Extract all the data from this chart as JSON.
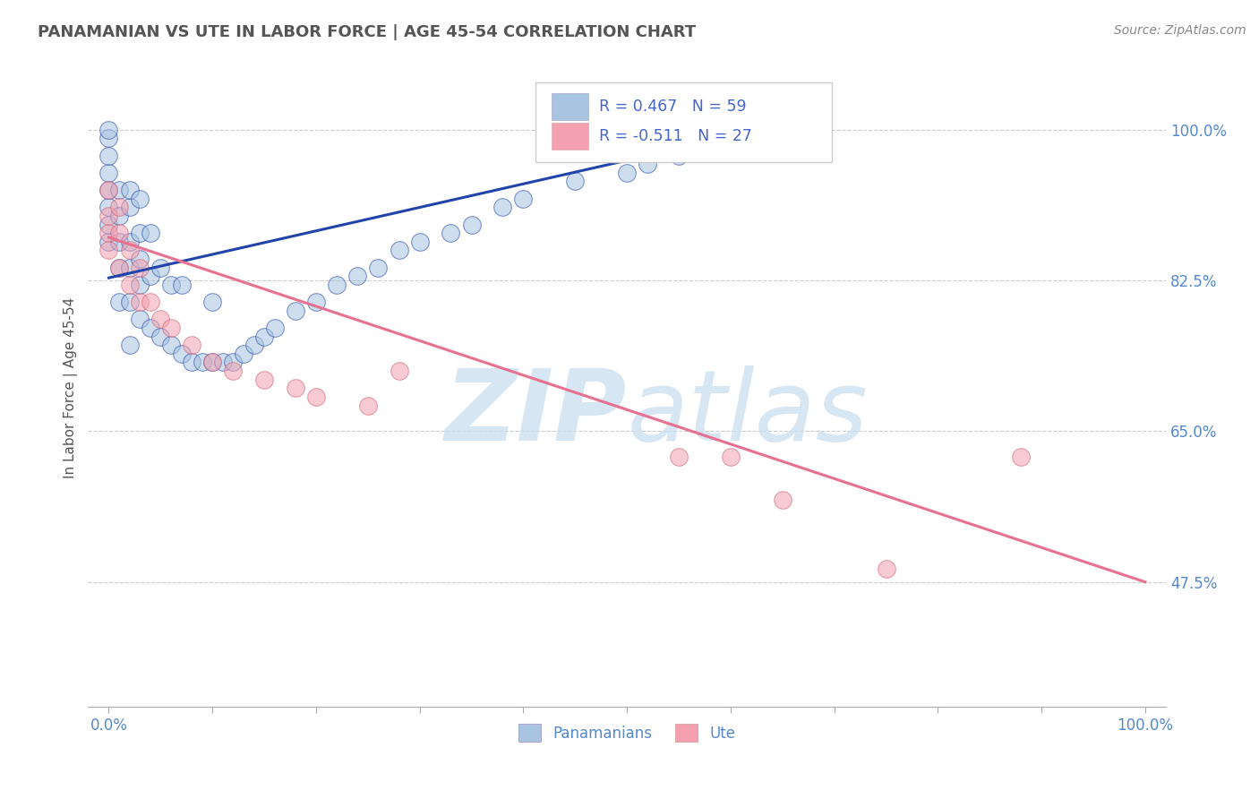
{
  "title": "PANAMANIAN VS UTE IN LABOR FORCE | AGE 45-54 CORRELATION CHART",
  "source": "Source: ZipAtlas.com",
  "ylabel": "In Labor Force | Age 45-54",
  "xlim": [
    -0.02,
    1.02
  ],
  "ylim": [
    0.33,
    1.07
  ],
  "ytick_values": [
    0.475,
    0.65,
    0.825,
    1.0
  ],
  "ytick_labels": [
    "47.5%",
    "65.0%",
    "82.5%",
    "100.0%"
  ],
  "xtick_values": [
    0.0,
    0.1,
    0.2,
    0.3,
    0.4,
    0.5,
    0.6,
    0.7,
    0.8,
    0.9,
    1.0
  ],
  "xtick_labels": [
    "0.0%",
    "",
    "",
    "",
    "",
    "",
    "",
    "",
    "",
    "",
    "100.0%"
  ],
  "blue_color": "#a8c4e0",
  "pink_color": "#f4a0b0",
  "blue_line_color": "#2244aa",
  "pink_line_color": "#e87090",
  "watermark_color": "#cce0f0",
  "blue_line_x": [
    0.0,
    0.55
  ],
  "blue_line_y": [
    0.828,
    0.978
  ],
  "pink_line_x": [
    0.0,
    1.0
  ],
  "pink_line_y": [
    0.875,
    0.475
  ],
  "pan_x": [
    0.0,
    0.0,
    0.0,
    0.0,
    0.0,
    0.0,
    0.0,
    0.0,
    0.01,
    0.01,
    0.01,
    0.01,
    0.01,
    0.02,
    0.02,
    0.02,
    0.02,
    0.02,
    0.02,
    0.03,
    0.03,
    0.03,
    0.03,
    0.03,
    0.04,
    0.04,
    0.04,
    0.05,
    0.05,
    0.06,
    0.06,
    0.07,
    0.07,
    0.08,
    0.09,
    0.1,
    0.1,
    0.11,
    0.12,
    0.13,
    0.14,
    0.15,
    0.16,
    0.18,
    0.2,
    0.22,
    0.24,
    0.26,
    0.28,
    0.3,
    0.33,
    0.35,
    0.38,
    0.4,
    0.45,
    0.5,
    0.52,
    0.55,
    0.58
  ],
  "pan_y": [
    0.87,
    0.89,
    0.91,
    0.93,
    0.95,
    0.97,
    0.99,
    1.0,
    0.8,
    0.84,
    0.87,
    0.9,
    0.93,
    0.75,
    0.8,
    0.84,
    0.87,
    0.91,
    0.93,
    0.78,
    0.82,
    0.85,
    0.88,
    0.92,
    0.77,
    0.83,
    0.88,
    0.76,
    0.84,
    0.75,
    0.82,
    0.74,
    0.82,
    0.73,
    0.73,
    0.73,
    0.8,
    0.73,
    0.73,
    0.74,
    0.75,
    0.76,
    0.77,
    0.79,
    0.8,
    0.82,
    0.83,
    0.84,
    0.86,
    0.87,
    0.88,
    0.89,
    0.91,
    0.92,
    0.94,
    0.95,
    0.96,
    0.97,
    0.98
  ],
  "ute_x": [
    0.0,
    0.0,
    0.0,
    0.0,
    0.01,
    0.01,
    0.01,
    0.02,
    0.02,
    0.03,
    0.03,
    0.04,
    0.05,
    0.06,
    0.08,
    0.1,
    0.12,
    0.15,
    0.18,
    0.2,
    0.25,
    0.28,
    0.55,
    0.6,
    0.65,
    0.75,
    0.88
  ],
  "ute_y": [
    0.88,
    0.9,
    0.93,
    0.86,
    0.84,
    0.88,
    0.91,
    0.82,
    0.86,
    0.8,
    0.84,
    0.8,
    0.78,
    0.77,
    0.75,
    0.73,
    0.72,
    0.71,
    0.7,
    0.69,
    0.68,
    0.72,
    0.62,
    0.62,
    0.57,
    0.49,
    0.62
  ]
}
